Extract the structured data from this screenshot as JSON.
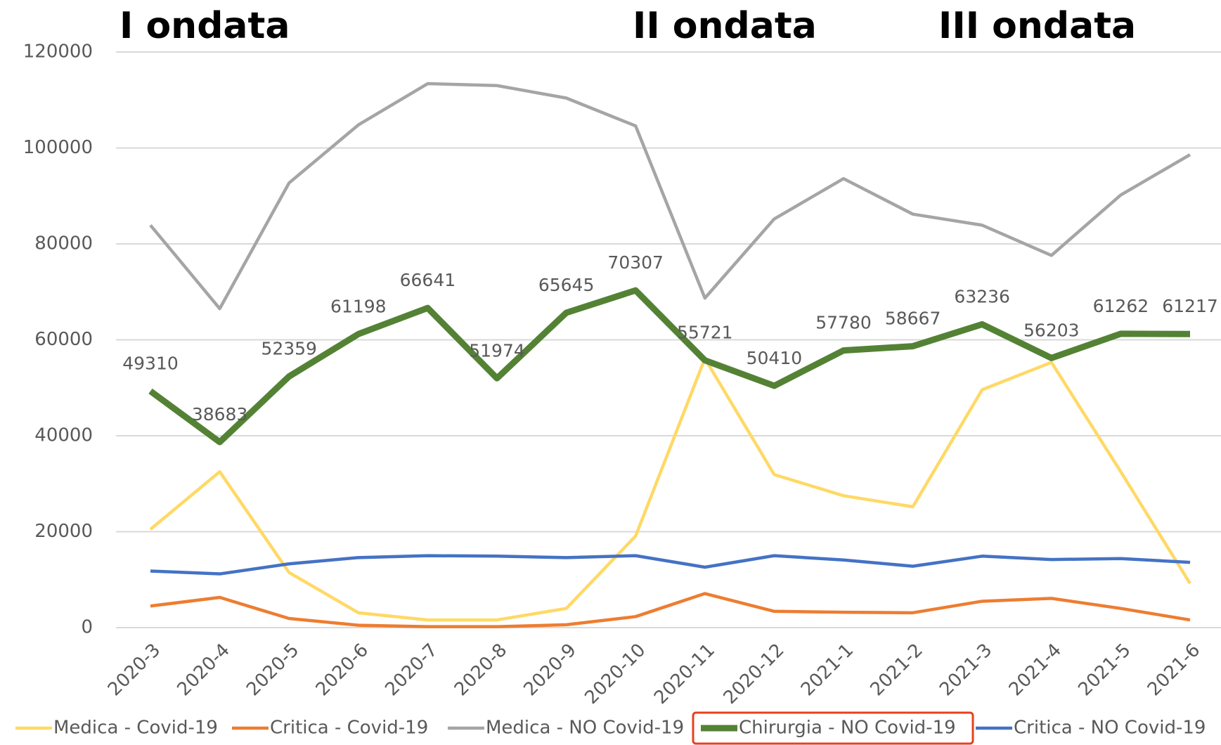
{
  "chart_data": {
    "type": "line",
    "annotations": [
      "I ondata",
      "II ondata",
      "III ondata"
    ],
    "categories": [
      "2020-3",
      "2020-4",
      "2020-5",
      "2020-6",
      "2020-7",
      "2020-8",
      "2020-9",
      "2020-10",
      "2020-11",
      "2020-12",
      "2021-1",
      "2021-2",
      "2021-3",
      "2021-4",
      "2021-5",
      "2021-6"
    ],
    "series": [
      {
        "name": "Medica - Covid-19",
        "color": "#ffd966",
        "values": [
          20500,
          32500,
          11500,
          3100,
          1600,
          1600,
          4000,
          19100,
          56100,
          31900,
          27500,
          25200,
          49600,
          55300,
          32500,
          9200
        ]
      },
      {
        "name": "Critica - Covid-19",
        "color": "#ed7d31",
        "values": [
          4500,
          6300,
          1900,
          500,
          200,
          200,
          600,
          2300,
          7100,
          3400,
          3200,
          3100,
          5500,
          6100,
          4000,
          1600
        ]
      },
      {
        "name": "Medica - NO Covid-19",
        "color": "#a5a5a5",
        "values": [
          83900,
          66500,
          92700,
          104800,
          113400,
          113000,
          110400,
          104600,
          68700,
          85200,
          93600,
          86200,
          83900,
          77600,
          90200,
          98600
        ]
      },
      {
        "name": "Chirurgia - NO Covid-19",
        "color": "#548235",
        "highlight": true,
        "values": [
          49310,
          38683,
          52359,
          61198,
          66641,
          51974,
          65645,
          70307,
          55721,
          50410,
          57780,
          58667,
          63236,
          56203,
          61262,
          61217
        ]
      },
      {
        "name": "Critica - NO Covid-19",
        "color": "#4472c4",
        "values": [
          11800,
          11200,
          13300,
          14600,
          15000,
          14900,
          14600,
          15000,
          12600,
          15000,
          14100,
          12800,
          14900,
          14200,
          14400,
          13600
        ]
      }
    ],
    "ylim": [
      0,
      120000
    ],
    "yticks": [
      0,
      20000,
      40000,
      60000,
      80000,
      100000,
      120000
    ],
    "grid": true
  }
}
